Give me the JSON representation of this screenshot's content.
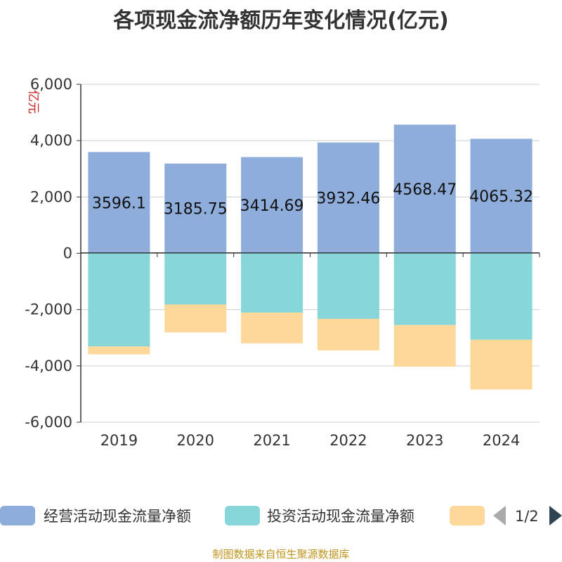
{
  "chart_data": {
    "type": "bar",
    "stacked": true,
    "title": "各项现金流净额历年变化情况(亿元)",
    "ylabel": "亿元",
    "ylim": [
      -6000,
      6000
    ],
    "yticks": [
      6000,
      4000,
      2000,
      0,
      -2000,
      -4000,
      -6000
    ],
    "ytick_labels": [
      "6,000",
      "4,000",
      "2,000",
      "0",
      "-2,000",
      "-4,000",
      "-6,000"
    ],
    "categories": [
      "2019",
      "2020",
      "2021",
      "2022",
      "2023",
      "2024"
    ],
    "series": [
      {
        "name": "经营活动现金流量净额",
        "color": "#8eadda",
        "values": [
          3596.1,
          3185.75,
          3414.69,
          3932.46,
          4568.47,
          4065.32
        ],
        "labels": [
          "3596.1",
          "3185.75",
          "3414.69",
          "3932.46",
          "4568.47",
          "4065.32"
        ]
      },
      {
        "name": "投资活动现金流量净额",
        "color": "#86d6da",
        "values": [
          -3310,
          -1820,
          -2110,
          -2330,
          -2550,
          -3070
        ]
      },
      {
        "name": "",
        "color": "#fdd899",
        "values": [
          -280,
          -990,
          -1090,
          -1120,
          -1480,
          -1770
        ]
      }
    ],
    "legend": {
      "position": "bottom",
      "page": "1/2"
    },
    "footer": "制图数据来自恒生聚源数据库"
  }
}
